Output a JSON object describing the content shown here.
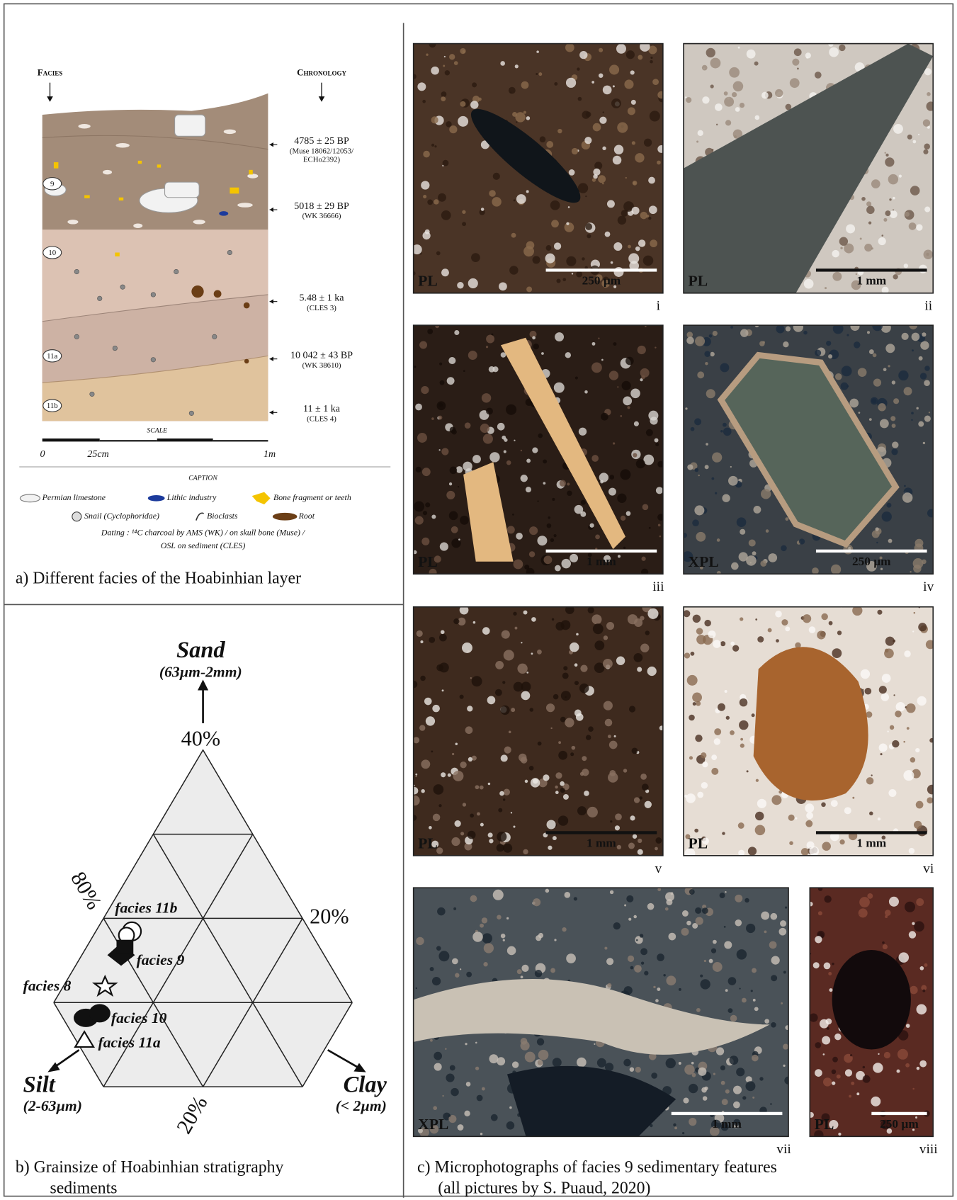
{
  "panel_a": {
    "facies_header": "Facies",
    "chronology_header": "Chronology",
    "layer_labels": [
      "9",
      "10",
      "11a",
      "11b"
    ],
    "dates": [
      {
        "date": "4785 ± 25 BP",
        "lab": [
          "(Muse 18062/12053/",
          "ECHo2392)"
        ]
      },
      {
        "date": "5018 ± 29 BP",
        "lab": [
          "(WK 36666)"
        ]
      },
      {
        "date": "5.48 ± 1 ka",
        "lab": [
          "(CLES 3)"
        ]
      },
      {
        "date": "10 042 ± 43 BP",
        "lab": [
          "(WK 38610)"
        ]
      },
      {
        "date": "11 ± 1 ka",
        "lab": [
          "(CLES 4)"
        ]
      }
    ],
    "scale_title": "SCALE",
    "scale_labels": [
      "0",
      "25cm",
      "1m"
    ],
    "caption_title": "CAPTION",
    "legend": [
      "Permian limestone",
      "Lithic industry",
      "Bone fragment or teeth",
      "Snail (Cyclophoridae)",
      "Bioclasts",
      "Root"
    ],
    "dating_note": [
      "Dating : ¹⁴C charcoal by AMS (WK) / on skull bone (Muse) /",
      "OSL on sediment (CLES)"
    ],
    "caption": "a) Different facies of the Hoabinhian layer"
  },
  "panel_b": {
    "apexes": [
      {
        "name": "Sand",
        "range": "(63µm-2mm)"
      },
      {
        "name": "Silt",
        "range": "(2-63µm)"
      },
      {
        "name": "Clay",
        "range": "(< 2µm)"
      }
    ],
    "ticks": [
      "40%",
      "80%",
      "20%",
      "20%"
    ],
    "samples": [
      "facies 11b",
      "facies 9",
      "facies 8",
      "facies 10",
      "facies 11a"
    ],
    "caption": [
      "b) Grainsize of Hoabinhian stratigraphy",
      "sediments"
    ]
  },
  "panel_c": {
    "photos": [
      {
        "light": "PL",
        "scale": "250 µm",
        "numeral": "i"
      },
      {
        "light": "PL",
        "scale": "1 mm",
        "numeral": "ii"
      },
      {
        "light": "PL",
        "scale": "1 mm",
        "numeral": "iii"
      },
      {
        "light": "XPL",
        "scale": "250 µm",
        "numeral": "iv"
      },
      {
        "light": "PL",
        "scale": "1 mm",
        "numeral": "v"
      },
      {
        "light": "PL",
        "scale": "1 mm",
        "numeral": "vi"
      },
      {
        "light": "XPL",
        "scale": "1 mm",
        "numeral": "vii"
      },
      {
        "light": "PL",
        "scale": "250 µm",
        "numeral": "viii"
      }
    ],
    "caption": [
      "c) Microphotographs of facies 9 sedimentary features",
      "(all pictures by S. Puaud, 2020)"
    ]
  }
}
